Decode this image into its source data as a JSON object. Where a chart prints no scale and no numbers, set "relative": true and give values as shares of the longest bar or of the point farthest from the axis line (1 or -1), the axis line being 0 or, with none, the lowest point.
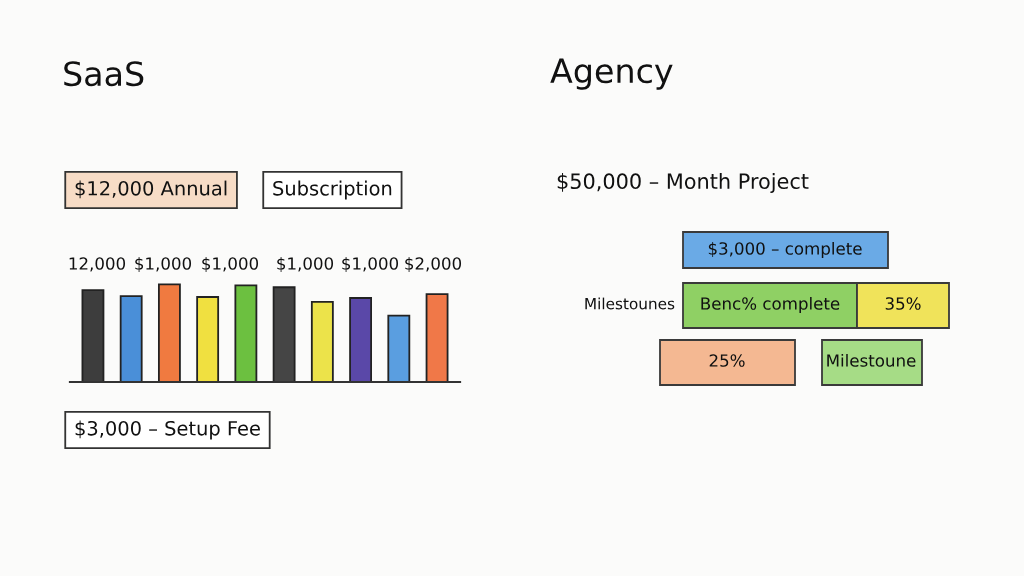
{
  "chart_data": [
    {
      "type": "bar",
      "title": "SaaS",
      "relative": true,
      "categories": [
        null,
        null,
        null,
        null,
        null,
        null,
        null,
        null,
        null,
        null
      ],
      "values": [
        0.94,
        0.88,
        1.0,
        0.87,
        0.99,
        0.97,
        0.82,
        0.86,
        0.68,
        0.9
      ],
      "colors": [
        "#3d3d3d",
        "#4a8fd8",
        "#f07a40",
        "#f0e040",
        "#6cc040",
        "#454545",
        "#ece34a",
        "#5a48a8",
        "#5a9ee0",
        "#f07848"
      ],
      "annotations": [
        "$12,000 Annual",
        "Subscription",
        "12,000",
        "$1,000",
        "$1,000",
        "$1,000",
        "$1,000",
        "$2,000",
        "$3,000 – Setup Fee"
      ]
    },
    {
      "type": "other",
      "title": "Agency",
      "annotations": [
        "$50,000 – Month Project",
        "$3,000 – complete",
        "Milestounes",
        "Benc% complete",
        "35%",
        "25%",
        "Milestoune"
      ]
    }
  ]
}
